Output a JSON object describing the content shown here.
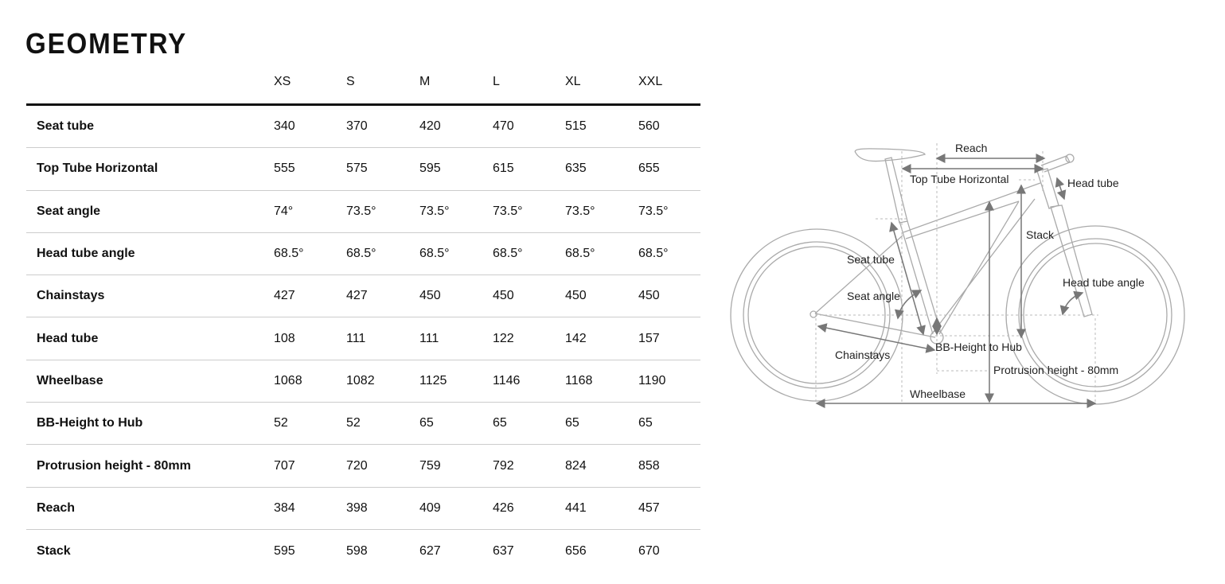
{
  "title": "GEOMETRY",
  "sizes": [
    "XS",
    "S",
    "M",
    "L",
    "XL",
    "XXL"
  ],
  "rows": [
    {
      "label": "Seat tube",
      "values": [
        "340",
        "370",
        "420",
        "470",
        "515",
        "560"
      ]
    },
    {
      "label": "Top Tube Horizontal",
      "values": [
        "555",
        "575",
        "595",
        "615",
        "635",
        "655"
      ]
    },
    {
      "label": "Seat angle",
      "values": [
        "74°",
        "73.5°",
        "73.5°",
        "73.5°",
        "73.5°",
        "73.5°"
      ]
    },
    {
      "label": "Head tube angle",
      "values": [
        "68.5°",
        "68.5°",
        "68.5°",
        "68.5°",
        "68.5°",
        "68.5°"
      ]
    },
    {
      "label": "Chainstays",
      "values": [
        "427",
        "427",
        "450",
        "450",
        "450",
        "450"
      ]
    },
    {
      "label": "Head tube",
      "values": [
        "108",
        "111",
        "111",
        "122",
        "142",
        "157"
      ]
    },
    {
      "label": "Wheelbase",
      "values": [
        "1068",
        "1082",
        "1125",
        "1146",
        "1168",
        "1190"
      ]
    },
    {
      "label": "BB-Height to Hub",
      "values": [
        "52",
        "52",
        "65",
        "65",
        "65",
        "65"
      ]
    },
    {
      "label": "Protrusion height - 80mm",
      "values": [
        "707",
        "720",
        "759",
        "792",
        "824",
        "858"
      ]
    },
    {
      "label": "Reach",
      "values": [
        "384",
        "398",
        "409",
        "426",
        "441",
        "457"
      ]
    },
    {
      "label": "Stack",
      "values": [
        "595",
        "598",
        "627",
        "637",
        "656",
        "670"
      ]
    }
  ],
  "diagram": {
    "reach": "Reach",
    "top_tube": "Top Tube Horizontal",
    "head_tube": "Head tube",
    "stack": "Stack",
    "seat_tube": "Seat tube",
    "head_tube_angle": "Head tube angle",
    "seat_angle": "Seat angle",
    "bb_height": "BB-Height to Hub",
    "chainstays": "Chainstays",
    "protrusion": "Protrusion height - 80mm",
    "wheelbase": "Wheelbase"
  }
}
